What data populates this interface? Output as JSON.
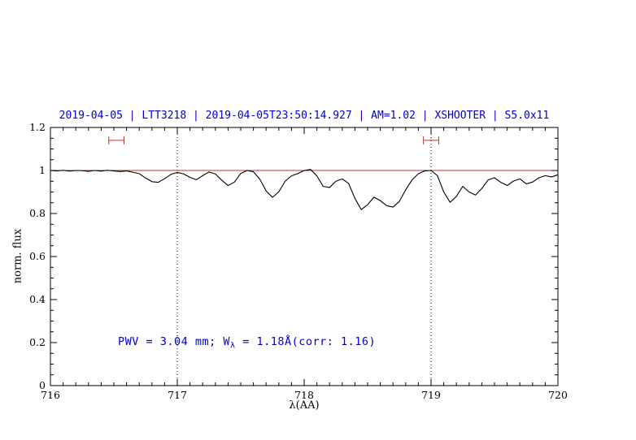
{
  "chart_data": {
    "type": "line",
    "title": "2019-04-05 | LTT3218 | 2019-04-05T23:50:14.927 | AM=1.02 | XSHOOTER | S5.0x11",
    "xlabel": "λ(AA)",
    "ylabel": "norm. flux",
    "xlim": [
      716,
      720
    ],
    "ylim": [
      0,
      1.2
    ],
    "x_ticks": [
      716,
      717,
      718,
      719,
      720
    ],
    "x_tick_labels": [
      "716",
      "717",
      "718",
      "719",
      "720"
    ],
    "y_ticks": [
      0,
      0.2,
      0.4,
      0.6,
      0.8,
      1,
      1.2
    ],
    "y_tick_labels": [
      "0",
      "0.2",
      "0.4",
      "0.6",
      "0.8",
      "1",
      "1.2"
    ],
    "grid": false,
    "legend": "none",
    "vlines": [
      717,
      719
    ],
    "continuum_y": 1.0,
    "markers": [
      {
        "x": 716.52,
        "y": 1.14,
        "halfwidth": 0.06
      },
      {
        "x": 719.0,
        "y": 1.14,
        "halfwidth": 0.06
      }
    ],
    "annotation": {
      "text_pre": "PWV = 3.04 mm; W",
      "sub": "λ",
      "text_post": " = 1.18Å(corr: 1.16)",
      "x": 716.55,
      "y": 0.2
    },
    "colors": {
      "title": "#0000cc",
      "annotation": "#0000cc",
      "spectrum": "#000000",
      "continuum": "#c03030",
      "marker": "#c03030",
      "vline": "#000000",
      "frame": "#000000"
    },
    "series": [
      {
        "name": "spectrum",
        "x_start": 716.0,
        "x_step": 0.05,
        "y": [
          1.0,
          0.998,
          1.001,
          0.997,
          1.0,
          0.999,
          0.996,
          1.0,
          0.997,
          1.001,
          0.998,
          0.995,
          0.998,
          0.992,
          0.985,
          0.965,
          0.948,
          0.945,
          0.962,
          0.982,
          0.991,
          0.984,
          0.968,
          0.957,
          0.976,
          0.993,
          0.984,
          0.955,
          0.93,
          0.946,
          0.986,
          1.0,
          0.994,
          0.96,
          0.905,
          0.875,
          0.901,
          0.95,
          0.975,
          0.986,
          1.0,
          1.005,
          0.975,
          0.926,
          0.921,
          0.95,
          0.961,
          0.94,
          0.87,
          0.818,
          0.841,
          0.876,
          0.86,
          0.836,
          0.83,
          0.856,
          0.91,
          0.956,
          0.985,
          0.998,
          1.0,
          0.976,
          0.9,
          0.852,
          0.88,
          0.926,
          0.9,
          0.886,
          0.916,
          0.956,
          0.966,
          0.945,
          0.93,
          0.951,
          0.961,
          0.938,
          0.946,
          0.966,
          0.976,
          0.97,
          0.98
        ]
      }
    ]
  }
}
